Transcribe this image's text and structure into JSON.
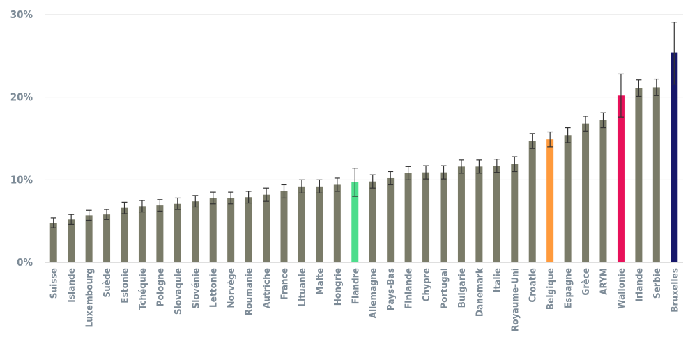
{
  "chart_data": {
    "type": "bar",
    "title": "",
    "xlabel": "",
    "ylabel": "",
    "ylim": [
      0,
      30
    ],
    "yticks": [
      0,
      10,
      20,
      30
    ],
    "ytick_labels": [
      "0%",
      "10%",
      "20%",
      "30%"
    ],
    "grid": true,
    "legend": "none",
    "colors": {
      "default": "#7a7b68",
      "Flandre": "#4ddd8c",
      "Belgique": "#ff9a3c",
      "Wallonie": "#e8115a",
      "Bruxelles": "#16176a",
      "error_bar": "#333333",
      "grid": "#dddddd",
      "tick_label": "#7d8b97"
    },
    "categories": [
      "Suisse",
      "Islande",
      "Luxembourg",
      "Suède",
      "Estonie",
      "Tchéquie",
      "Pologne",
      "Slovaquie",
      "Slovénie",
      "Lettonie",
      "Norvège",
      "Roumanie",
      "Autriche",
      "France",
      "Lituanie",
      "Malte",
      "Hongrie",
      "Flandre",
      "Allemagne",
      "Pays-Bas",
      "Finlande",
      "Chypre",
      "Portugal",
      "Bulgarie",
      "Danemark",
      "Italie",
      "Royaume-Uni",
      "Croatie",
      "Belgique",
      "Espagne",
      "Grèce",
      "ARYM",
      "Wallonie",
      "Irlande",
      "Serbie",
      "Bruxelles"
    ],
    "values": [
      4.8,
      5.2,
      5.7,
      5.8,
      6.6,
      6.8,
      6.9,
      7.1,
      7.4,
      7.8,
      7.8,
      7.9,
      8.2,
      8.6,
      9.2,
      9.2,
      9.4,
      9.7,
      9.8,
      10.2,
      10.8,
      10.9,
      10.9,
      11.6,
      11.6,
      11.7,
      11.9,
      14.7,
      14.9,
      15.4,
      16.8,
      17.2,
      20.2,
      21.1,
      21.2,
      25.4
    ],
    "error_low": [
      4.2,
      4.6,
      5.1,
      5.2,
      5.9,
      6.1,
      6.2,
      6.4,
      6.7,
      7.1,
      7.1,
      7.2,
      7.4,
      7.8,
      8.4,
      8.4,
      8.6,
      8.0,
      9.0,
      9.4,
      10.0,
      10.1,
      10.1,
      10.8,
      10.8,
      10.9,
      11.0,
      13.8,
      14.0,
      14.5,
      15.9,
      16.3,
      17.6,
      20.1,
      20.2,
      21.6
    ],
    "error_high": [
      5.4,
      5.8,
      6.3,
      6.4,
      7.3,
      7.5,
      7.6,
      7.8,
      8.1,
      8.5,
      8.5,
      8.6,
      9.0,
      9.4,
      10.0,
      10.0,
      10.2,
      11.4,
      10.6,
      11.0,
      11.6,
      11.7,
      11.7,
      12.4,
      12.4,
      12.5,
      12.8,
      15.6,
      15.8,
      16.3,
      17.7,
      18.1,
      22.8,
      22.1,
      22.2,
      29.1
    ]
  }
}
